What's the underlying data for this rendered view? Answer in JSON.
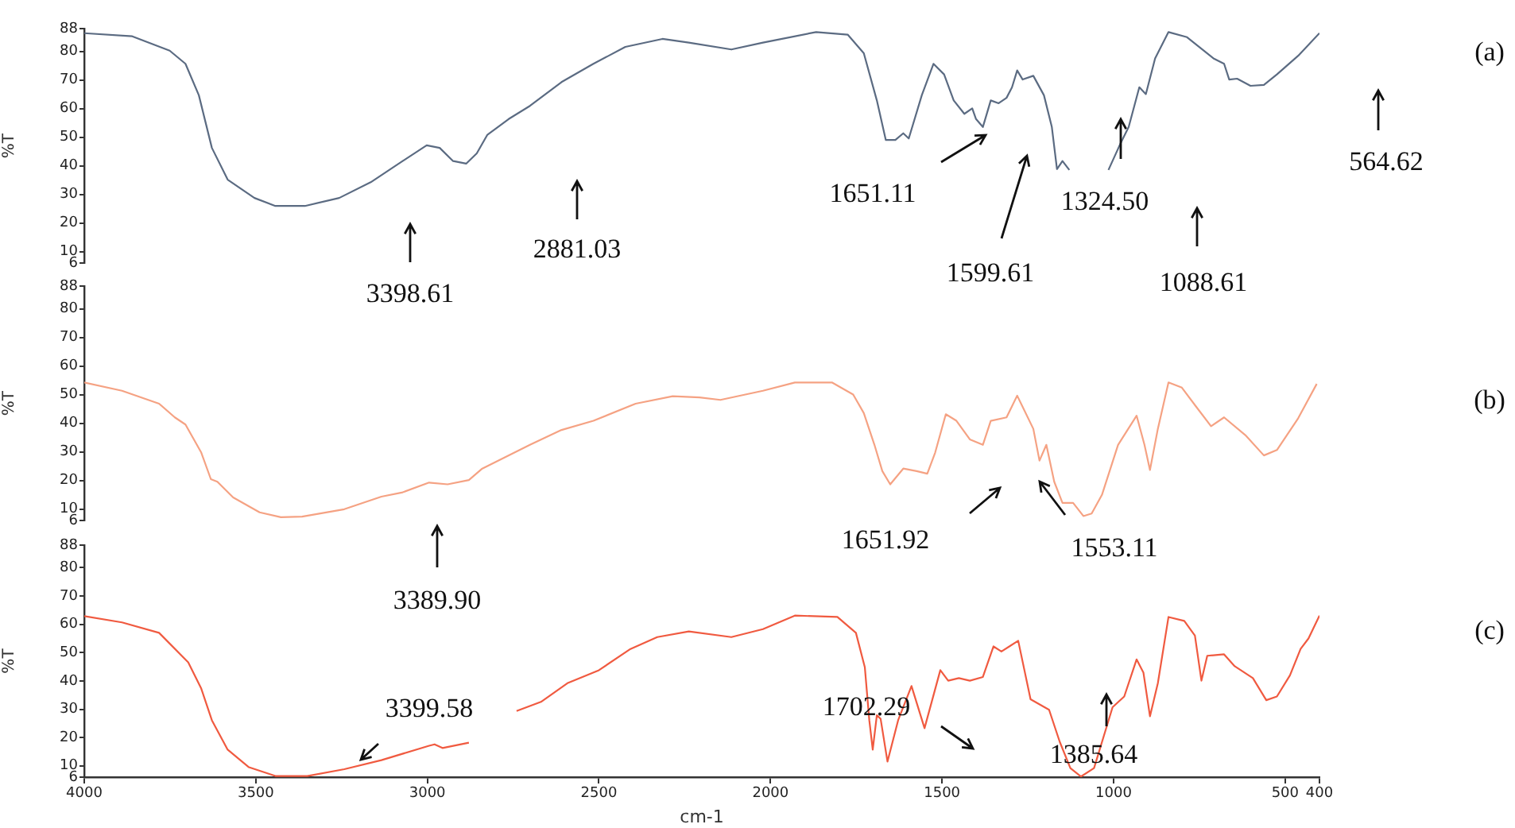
{
  "chart_data": [
    {
      "type": "line",
      "ylabel": "%T",
      "xlim": [
        4000,
        400
      ],
      "xticks": [
        4000,
        3500,
        3000,
        2500,
        2000,
        1500,
        1000,
        500,
        400
      ],
      "ylim": [
        6,
        88
      ],
      "yticks": [
        6,
        10,
        20,
        30,
        40,
        50,
        60,
        70,
        80,
        88
      ],
      "tick_labels": "y",
      "grid": false,
      "legend": false,
      "marker": "none",
      "line_style": "solid",
      "series": [
        {
          "color": "#5b6b82",
          "x": [
            4000,
            3860,
            3751,
            3705,
            3666,
            3628,
            3582,
            3504,
            3443,
            3357,
            3257,
            3165,
            3072,
            3002,
            2964,
            2925,
            2887,
            2856,
            2825,
            2763,
            2701,
            2609,
            2516,
            2423,
            2315,
            2238,
            2114,
            2022,
            1867,
            1775,
            1728,
            1690,
            1664,
            1636,
            1613,
            1597,
            1559,
            1525,
            1494,
            1466,
            1435,
            1412,
            1401,
            1381,
            1358,
            1335,
            1312,
            1296,
            1281,
            1265,
            1234,
            1203,
            1180,
            1165,
            1149,
            1129,
            1070,
            1015,
            979,
            956,
            925,
            906,
            879,
            840,
            786,
            709,
            678,
            663,
            640,
            601,
            562,
            524,
            462,
            400
          ],
          "values": [
            86.4,
            85.3,
            80.3,
            75.7,
            64.7,
            46.3,
            35.2,
            28.8,
            26,
            26,
            28.8,
            34.3,
            41.7,
            47.2,
            46.3,
            41.7,
            40.8,
            44.4,
            50.9,
            56.4,
            61,
            69.3,
            75.7,
            81.6,
            84.4,
            83.1,
            80.7,
            83.1,
            86.8,
            85.9,
            79.4,
            62.9,
            49.1,
            49.1,
            51.4,
            49.6,
            64.7,
            75.7,
            72,
            62.9,
            58.2,
            60.1,
            56.4,
            53.6,
            62.9,
            61.9,
            63.8,
            67.5,
            73.4,
            70.2,
            71.5,
            64.7,
            53.6,
            38.9,
            41.7,
            38.6,
            null,
            38.6,
            48.1,
            53.6,
            67.5,
            65.1,
            77.6,
            86.8,
            85,
            77.6,
            75.7,
            70.2,
            70.5,
            68,
            68.3,
            72,
            78.5,
            86.4
          ]
        }
      ],
      "annotations": [
        "(a)",
        "3398.61",
        "2881.03",
        "1651.11",
        "1599.61",
        "1324.50",
        "1088.61",
        "564.62"
      ]
    },
    {
      "type": "line",
      "ylabel": "%T",
      "xlim": [
        4000,
        400
      ],
      "xticks": [
        4000,
        3500,
        3000,
        2500,
        2000,
        1500,
        1000,
        500,
        400
      ],
      "ylim": [
        6,
        88
      ],
      "yticks": [
        6,
        10,
        20,
        30,
        40,
        50,
        60,
        70,
        80,
        88
      ],
      "tick_labels": "y",
      "grid": false,
      "legend": false,
      "marker": "none",
      "line_style": "solid",
      "series": [
        {
          "color": "#f5a283",
          "x": [
            4000,
            3890,
            3782,
            3736,
            3705,
            3659,
            3631,
            3612,
            3566,
            3489,
            3427,
            3365,
            3242,
            3134,
            3072,
            2995,
            2941,
            2879,
            2840,
            2701,
            2609,
            2516,
            2393,
            2285,
            2207,
            2146,
            2022,
            1929,
            1821,
            1759,
            1728,
            1697,
            1674,
            1651,
            1613,
            1574,
            1543,
            1520,
            1489,
            1458,
            1419,
            1381,
            1358,
            1312,
            1281,
            1234,
            1216,
            1196,
            1173,
            1149,
            1118,
            1088,
            1064,
            1034,
            987,
            933,
            910,
            894,
            871,
            840,
            801,
            763,
            716,
            678,
            616,
            562,
            524,
            462,
            408
          ],
          "values": [
            54.3,
            51.4,
            46.9,
            42.1,
            39.6,
            29.8,
            20.5,
            19.6,
            14.1,
            8.9,
            7.2,
            7.4,
            10,
            14.4,
            15.9,
            19.3,
            18.7,
            20.2,
            24.2,
            32.5,
            37.7,
            40.9,
            46.9,
            49.5,
            49.1,
            48.2,
            51.4,
            54.3,
            54.3,
            50.1,
            43.6,
            32.5,
            23.3,
            18.7,
            24.2,
            23.3,
            22.4,
            29.8,
            43.2,
            40.9,
            34.4,
            32.5,
            40.9,
            42.1,
            49.7,
            38.1,
            27,
            32.5,
            19.6,
            12.2,
            12.2,
            7.6,
            8.5,
            15,
            32.5,
            42.7,
            32.5,
            23.7,
            38.1,
            54.3,
            52.5,
            46.4,
            39,
            42.1,
            35.9,
            28.8,
            30.7,
            41.8,
            53.8
          ]
        }
      ],
      "annotations": [
        "(b)",
        "3389.90",
        "1651.92",
        "1553.11"
      ]
    },
    {
      "type": "line",
      "xlabel": "cm-1",
      "ylabel": "%T",
      "xlim": [
        4000,
        400
      ],
      "xticks": [
        4000,
        3500,
        3000,
        2500,
        2000,
        1500,
        1000,
        500,
        400
      ],
      "ylim": [
        6,
        88
      ],
      "yticks": [
        6,
        10,
        20,
        30,
        40,
        50,
        60,
        70,
        80,
        88
      ],
      "grid": false,
      "legend": false,
      "marker": "none",
      "line_style": "solid",
      "series": [
        {
          "color": "#f05a40",
          "x": [
            4000,
            3890,
            3782,
            3697,
            3659,
            3628,
            3582,
            3520,
            3443,
            3350,
            3242,
            3134,
            2995,
            2979,
            2956,
            2879,
            2810,
            2740,
            2669,
            2592,
            2500,
            2408,
            2330,
            2238,
            2114,
            2022,
            1929,
            1805,
            1751,
            1725,
            1712,
            1702,
            1690,
            1679,
            1659,
            1628,
            1589,
            1551,
            1505,
            1482,
            1451,
            1419,
            1381,
            1350,
            1327,
            1278,
            1242,
            1188,
            1157,
            1126,
            1095,
            1057,
            1003,
            969,
            933,
            913,
            894,
            871,
            840,
            794,
            763,
            744,
            727,
            678,
            647,
            594,
            555,
            524,
            486,
            455,
            432,
            400
          ],
          "values": [
            62.9,
            60.7,
            57,
            46.6,
            37.3,
            26.1,
            15.7,
            9.5,
            6.4,
            6.4,
            8.8,
            12,
            17.1,
            17.6,
            16.3,
            18.2,
            null,
            29.4,
            32.6,
            39.2,
            43.8,
            51.3,
            55.5,
            57.5,
            55.5,
            58.3,
            63.1,
            62.6,
            57,
            44.8,
            26.1,
            15.7,
            27.9,
            26.6,
            11.5,
            26.1,
            38.2,
            23.3,
            43.8,
            40.1,
            41,
            40.1,
            41.4,
            52.2,
            50.4,
            54.2,
            33.5,
            29.8,
            18.5,
            9.2,
            6.2,
            9.2,
            30.7,
            34.5,
            47.6,
            42.9,
            27.5,
            39.2,
            62.6,
            61.2,
            56,
            40.1,
            48.9,
            49.4,
            45.2,
            41,
            33.2,
            34.5,
            42,
            51.3,
            55,
            63.1
          ]
        }
      ],
      "annotations": [
        "(c)",
        "3399.58",
        "1702.29",
        "1385.64"
      ]
    }
  ]
}
